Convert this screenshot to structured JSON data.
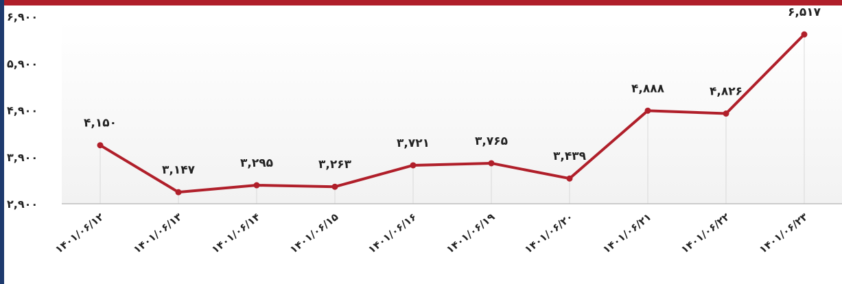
{
  "colors": {
    "header": "#b01f2a",
    "side": "#1e3a6e",
    "line": "#b01f2a",
    "grid": "#d9d9d9"
  },
  "chart_data": {
    "type": "line",
    "categories": [
      "۱۴۰۱/۰۶/۱۲",
      "۱۴۰۱/۰۶/۱۳",
      "۱۴۰۱/۰۶/۱۴",
      "۱۴۰۱/۰۶/۱۵",
      "۱۴۰۱/۰۶/۱۶",
      "۱۴۰۱/۰۶/۱۹",
      "۱۴۰۱/۰۶/۲۰",
      "۱۴۰۱/۰۶/۲۱",
      "۱۴۰۱/۰۶/۲۲",
      "۱۴۰۱/۰۶/۲۳"
    ],
    "values": [
      4150,
      3147,
      3295,
      3263,
      3721,
      3765,
      3439,
      4888,
      4826,
      6517
    ],
    "value_labels": [
      "۴,۱۵۰",
      "۳,۱۴۷",
      "۳,۲۹۵",
      "۳,۲۶۳",
      "۳,۷۲۱",
      "۳,۷۶۵",
      "۳,۴۳۹",
      "۴,۸۸۸",
      "۴,۸۲۶",
      "۶,۵۱۷"
    ],
    "y_ticks": [
      2900,
      3900,
      4900,
      5900,
      6900
    ],
    "y_tick_labels": [
      "۲,۹۰۰",
      "۳,۹۰۰",
      "۴,۹۰۰",
      "۵,۹۰۰",
      "۶,۹۰۰"
    ],
    "ylim": [
      2900,
      6900
    ],
    "grid": "vertical",
    "title": "",
    "xlabel": "",
    "ylabel": ""
  }
}
